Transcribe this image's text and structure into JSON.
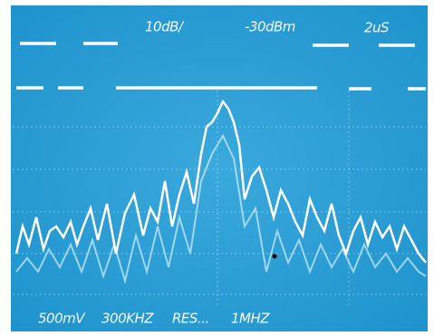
{
  "screen": {
    "top_labels": [
      "10dB/",
      "-30dBm",
      "2uS"
    ],
    "bottom_labels": [
      "500mV",
      "300KHZ",
      "RES...",
      "1MHZ"
    ]
  }
}
